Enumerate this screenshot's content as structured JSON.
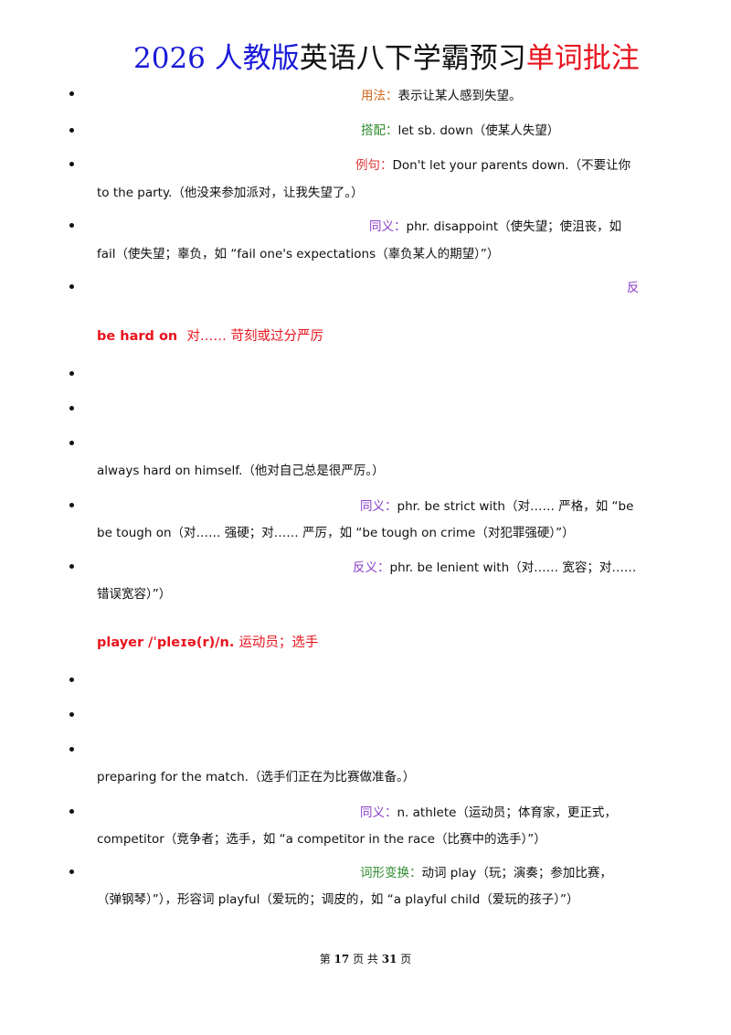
{
  "title": {
    "year": "2026 ",
    "edition": "人教版",
    "course": "英语八下学霸预习",
    "topic": "单词批注"
  },
  "section1": {
    "usage": {
      "label": "用法：",
      "text": "表示让某人感到失望。"
    },
    "collocation": {
      "label": "搭配：",
      "text": "let sb. down（使某人失望）"
    },
    "example": {
      "label": "例句：",
      "text": "Don't let your parents down.（不要让你",
      "cont": "to the party.（他没来参加派对，让我失望了。）"
    },
    "synonym": {
      "label": "同义：",
      "text": "phr. disappoint（使失望；使沮丧，如",
      "cont": "fail（使失望；辜负，如 “fail one's expectations（辜负某人的期望）”）"
    },
    "antonym": {
      "label": "反"
    }
  },
  "section2": {
    "headword": "be hard on",
    "meaning": "对…… 苛刻或过分严厉",
    "example_cont": "always hard on himself.（他对自己总是很严厉。）",
    "synonym": {
      "label": "同义：",
      "text": "phr. be strict with（对…… 严格，如 “be",
      "cont": "be tough on（对…… 强硬；对…… 严厉，如 “be tough on crime（对犯罪强硬）”）"
    },
    "antonym": {
      "label": "反义：",
      "text": "phr. be lenient with（对…… 宽容；对……",
      "cont": "错误宽容）”）"
    }
  },
  "section3": {
    "headword": "player /ˈpleɪə(r)/n.",
    "meaning": "运动员；选手",
    "example_cont": "preparing for the match.（选手们正在为比赛做准备。）",
    "synonym": {
      "label": "同义：",
      "text": "n. athlete（运动员；体育家，更正式，",
      "cont": "competitor（竞争者；选手，如 “a competitor in the race（比赛中的选手）”）"
    },
    "wordform": {
      "label": "词形变换：",
      "text": "动词 play（玩；演奏；参加比赛，",
      "cont": "（弹钢琴）”），形容词 playful（爱玩的；调皮的，如 “a playful child（爱玩的孩子）”）"
    }
  },
  "footer": {
    "prefix": "第",
    "page": "17",
    "mid": "页  共",
    "total": "31",
    "suffix": "页"
  }
}
